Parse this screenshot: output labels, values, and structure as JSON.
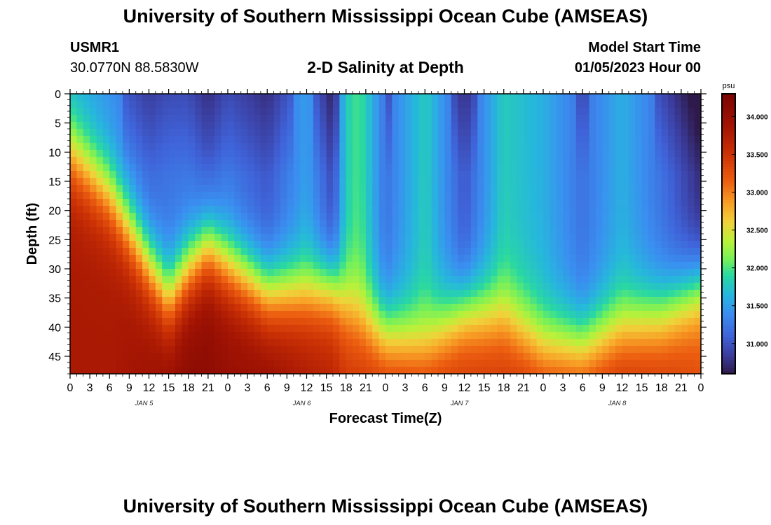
{
  "header": {
    "title": "University of Southern Mississippi Ocean Cube (AMSEAS)",
    "station": "USMR1",
    "coordinates": "30.0770N  88.5830W",
    "subtitle": "2-D Salinity at Depth",
    "model_start_label": "Model Start Time",
    "model_start_value": "01/05/2023 Hour 00"
  },
  "footer": {
    "title": "University of Southern Mississippi Ocean Cube (AMSEAS)"
  },
  "chart_data": {
    "type": "heatmap",
    "title": "2-D Salinity at Depth",
    "xlabel": "Forecast Time(Z)",
    "ylabel": "Depth (ft)",
    "x_hours": [
      0,
      96
    ],
    "x_tick_labels": [
      "0",
      "3",
      "6",
      "9",
      "12",
      "15",
      "18",
      "21",
      "0",
      "3",
      "6",
      "9",
      "12",
      "15",
      "18",
      "21",
      "0",
      "3",
      "6",
      "9",
      "12",
      "15",
      "18",
      "21",
      "0",
      "3",
      "6",
      "9",
      "12",
      "15",
      "18",
      "21",
      "0"
    ],
    "day_labels": [
      "JAN 5",
      "JAN 6",
      "JAN 7",
      "JAN 8"
    ],
    "ylim": [
      0,
      48
    ],
    "y_ticks": [
      "0",
      "5",
      "10",
      "15",
      "20",
      "25",
      "30",
      "35",
      "40",
      "45"
    ],
    "colorbar": {
      "unit": "psu",
      "range": [
        30.6,
        34.3
      ],
      "ticks": [
        "34.000",
        "33.500",
        "33.000",
        "32.500",
        "32.000",
        "31.500",
        "31.000"
      ]
    },
    "colormap": [
      {
        "v": 30.6,
        "c": "#2e1a4a"
      },
      {
        "v": 30.85,
        "c": "#3b3d9e"
      },
      {
        "v": 31.1,
        "c": "#3f63d9"
      },
      {
        "v": 31.4,
        "c": "#3a8ff0"
      },
      {
        "v": 31.65,
        "c": "#26b7dc"
      },
      {
        "v": 31.9,
        "c": "#29d8a2"
      },
      {
        "v": 32.1,
        "c": "#72f05c"
      },
      {
        "v": 32.35,
        "c": "#b9f13a"
      },
      {
        "v": 32.6,
        "c": "#f0d23a"
      },
      {
        "v": 32.85,
        "c": "#f8a026"
      },
      {
        "v": 33.15,
        "c": "#ec5d10"
      },
      {
        "v": 33.5,
        "c": "#cc3205"
      },
      {
        "v": 33.85,
        "c": "#a41503"
      },
      {
        "v": 34.3,
        "c": "#7a0403"
      }
    ],
    "profiles_hours": [
      0,
      6,
      12,
      15,
      18,
      21,
      24,
      30,
      36,
      40,
      42,
      44,
      48,
      54,
      60,
      66,
      72,
      78,
      84,
      90,
      96
    ],
    "interface_depth_ft": [
      10,
      17,
      29,
      35,
      30,
      26,
      29,
      34,
      34,
      33,
      36,
      38,
      41,
      43,
      37,
      38,
      43,
      43,
      40,
      38,
      33
    ],
    "upper_salinity_psu": [
      31.6,
      31.4,
      31.1,
      31.2,
      31.2,
      31.0,
      31.2,
      31.0,
      31.5,
      30.9,
      31.8,
      32.0,
      31.2,
      31.8,
      31.0,
      31.8,
      31.6,
      31.2,
      31.6,
      31.2,
      30.7
    ],
    "lower_salinity_psu": [
      33.8,
      33.8,
      33.9,
      34.0,
      34.1,
      34.1,
      34.0,
      34.0,
      33.8,
      33.7,
      33.5,
      33.5,
      33.6,
      33.6,
      33.5,
      33.5,
      33.6,
      33.6,
      33.6,
      33.5,
      33.3
    ]
  }
}
